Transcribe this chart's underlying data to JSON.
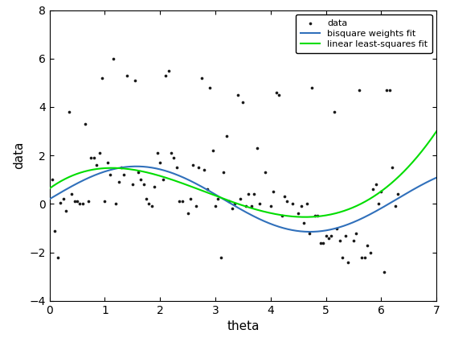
{
  "title": "",
  "xlabel": "theta",
  "ylabel": "data",
  "xlim": [
    0,
    7
  ],
  "ylim": [
    -4,
    8
  ],
  "xticks": [
    0,
    1,
    2,
    3,
    4,
    5,
    6,
    7
  ],
  "yticks": [
    -4,
    -2,
    0,
    2,
    4,
    6,
    8
  ],
  "scatter_color": "#1a1a1a",
  "bisquare_color": "#3070bb",
  "linear_color": "#00dd00",
  "legend_labels": [
    "data",
    "bisquare weights fit",
    "linear least-squares fit"
  ],
  "blue_params": [
    1.3,
    1.0,
    0.0,
    0.0
  ],
  "green_params": [
    0.259,
    -1.435,
    0.55
  ],
  "scatter_x": [
    0.05,
    0.1,
    0.15,
    0.2,
    0.25,
    0.3,
    0.35,
    0.4,
    0.45,
    0.5,
    0.55,
    0.6,
    0.65,
    0.7,
    0.75,
    0.8,
    0.85,
    0.9,
    0.95,
    1.0,
    1.05,
    1.1,
    1.15,
    1.2,
    1.25,
    1.3,
    1.35,
    1.4,
    1.5,
    1.55,
    1.6,
    1.65,
    1.7,
    1.75,
    1.8,
    1.85,
    1.9,
    1.95,
    2.0,
    2.05,
    2.1,
    2.15,
    2.2,
    2.25,
    2.3,
    2.35,
    2.4,
    2.5,
    2.55,
    2.6,
    2.65,
    2.7,
    2.75,
    2.8,
    2.85,
    2.9,
    2.95,
    3.0,
    3.05,
    3.1,
    3.15,
    3.2,
    3.25,
    3.3,
    3.35,
    3.4,
    3.45,
    3.5,
    3.55,
    3.6,
    3.65,
    3.7,
    3.75,
    3.8,
    3.9,
    4.0,
    4.05,
    4.1,
    4.15,
    4.2,
    4.25,
    4.3,
    4.4,
    4.5,
    4.55,
    4.6,
    4.65,
    4.7,
    4.75,
    4.8,
    4.85,
    4.9,
    4.95,
    5.0,
    5.05,
    5.1,
    5.15,
    5.2,
    5.25,
    5.3,
    5.35,
    5.4,
    5.5,
    5.55,
    5.6,
    5.65,
    5.7,
    5.75,
    5.8,
    5.85,
    5.9,
    5.95,
    6.0,
    6.05,
    6.1,
    6.15,
    6.2,
    6.25,
    6.3
  ],
  "scatter_y": [
    1.0,
    -1.1,
    -2.2,
    0.05,
    0.2,
    -0.3,
    3.8,
    0.4,
    0.1,
    0.1,
    0.0,
    0.0,
    3.3,
    0.1,
    1.9,
    1.9,
    1.6,
    2.1,
    5.2,
    0.1,
    1.7,
    1.2,
    6.0,
    0.0,
    0.9,
    1.5,
    1.2,
    5.3,
    0.8,
    5.1,
    1.3,
    1.0,
    0.8,
    0.2,
    0.0,
    -0.1,
    0.7,
    2.1,
    1.7,
    1.0,
    5.3,
    5.5,
    2.1,
    1.9,
    1.5,
    0.1,
    0.1,
    -0.4,
    0.2,
    1.6,
    -0.1,
    1.5,
    5.2,
    1.4,
    0.6,
    4.8,
    2.2,
    -0.1,
    0.2,
    -2.2,
    1.3,
    2.8,
    0.1,
    -0.2,
    0.0,
    4.5,
    0.2,
    4.2,
    -0.1,
    0.4,
    -0.1,
    0.4,
    2.3,
    0.0,
    1.3,
    -0.1,
    0.5,
    4.6,
    4.5,
    -0.5,
    0.3,
    0.1,
    0.0,
    -0.4,
    -0.1,
    -0.8,
    0.0,
    -1.2,
    4.8,
    -0.5,
    -0.5,
    -1.6,
    -1.6,
    -1.3,
    -1.4,
    -1.3,
    3.8,
    -1.0,
    -1.5,
    -2.2,
    -1.3,
    -2.4,
    -1.5,
    -1.2,
    4.7,
    -2.2,
    -2.2,
    -1.7,
    -2.0,
    0.6,
    0.8,
    0.0,
    0.5,
    -2.8,
    4.7,
    4.7,
    1.5,
    -0.1,
    0.4
  ]
}
